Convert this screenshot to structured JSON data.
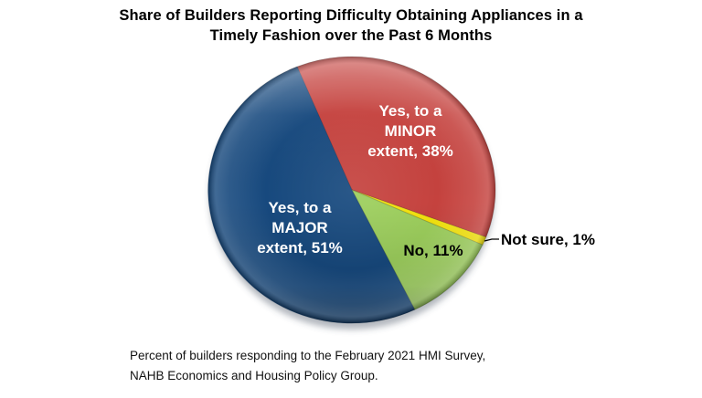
{
  "title": "Share of Builders Reporting Difficulty Obtaining Appliances in a\nTimely Fashion over the Past 6 Months",
  "footnote": "Percent of builders responding to the February 2021 HMI Survey,\nNAHB Economics and Housing Policy Group.",
  "chart_data": {
    "type": "pie",
    "title": "Share of Builders Reporting Difficulty Obtaining Appliances in a Timely Fashion over the Past 6 Months",
    "legend": "none (labels on slices)",
    "start_angle_deg": -26,
    "direction": "clockwise",
    "background_color": "#FFFFFF",
    "segments": [
      {
        "name": "yes-minor",
        "category": "Yes, to a MINOR extent",
        "value_pct": 38,
        "color": "#C5423E",
        "label": "Yes, to a\nMINOR\nextent, 38%",
        "label_color": "#FFFFFF"
      },
      {
        "name": "not-sure",
        "category": "Not sure",
        "value_pct": 1,
        "color": "#F2E20D",
        "label": "Not sure, 1%",
        "label_color": "#000000",
        "callout": true
      },
      {
        "name": "no",
        "category": "No",
        "value_pct": 11,
        "color": "#9CCE5C",
        "label": "No, 11%",
        "label_color": "#000000"
      },
      {
        "name": "yes-major",
        "category": "Yes, to a MAJOR extent",
        "value_pct": 51,
        "color": "#17497E",
        "label": "Yes, to a\nMAJOR\nextent, 51%",
        "label_color": "#FFFFFF"
      }
    ]
  }
}
